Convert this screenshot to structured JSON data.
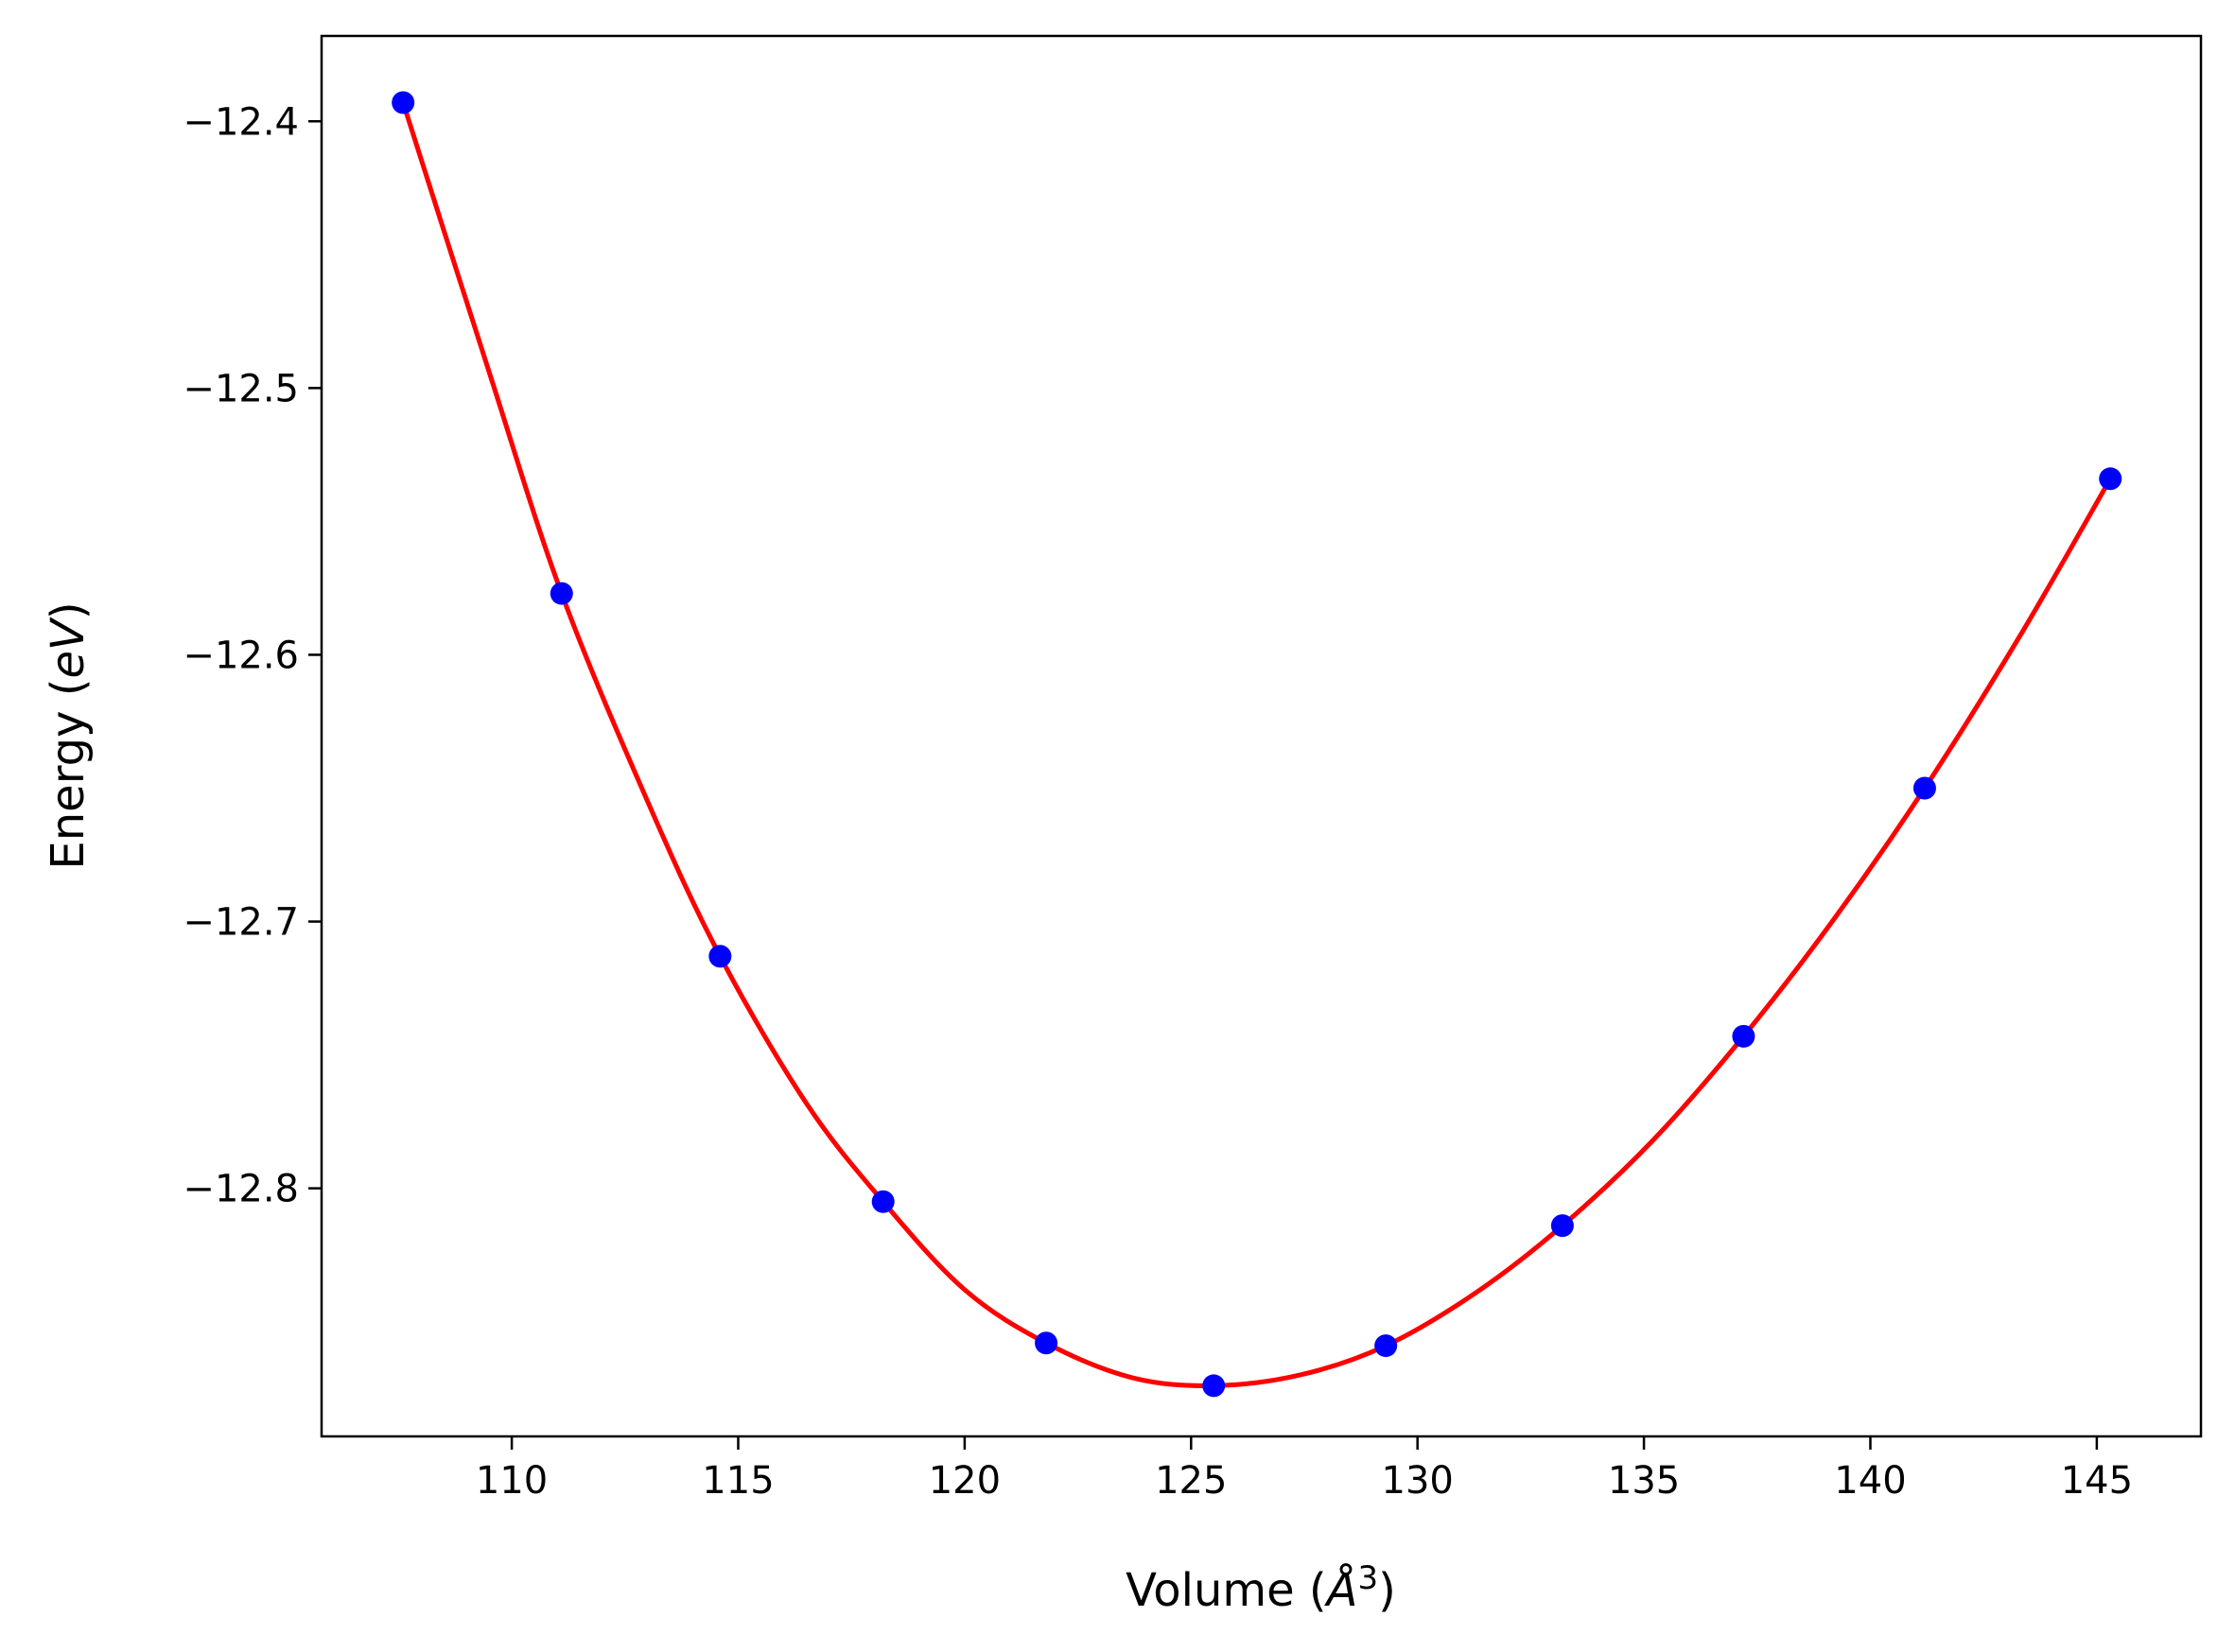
{
  "chart_data": {
    "type": "scatter",
    "xlabel": {
      "prefix": "Volume (",
      "unit": "Å",
      "sup": "3",
      "suffix": ")"
    },
    "ylabel": {
      "prefix": "Energy (",
      "unit": "eV",
      "suffix": ")"
    },
    "xlim": [
      105.8,
      147.3
    ],
    "ylim": [
      -12.893,
      -12.368
    ],
    "x_ticks": [
      110,
      115,
      120,
      125,
      130,
      135,
      140,
      145
    ],
    "y_ticks": [
      -12.4,
      -12.5,
      -12.6,
      -12.7,
      -12.8
    ],
    "x_tick_labels": [
      "110",
      "115",
      "120",
      "125",
      "130",
      "135",
      "140",
      "145"
    ],
    "y_tick_labels": [
      "−12.4",
      "−12.5",
      "−12.6",
      "−12.7",
      "−12.8"
    ],
    "grid": false,
    "series": [
      {
        "kind": "points",
        "color": "#0000ff",
        "x": [
          107.6,
          111.1,
          114.6,
          118.2,
          121.8,
          125.5,
          129.3,
          133.2,
          137.2,
          141.2,
          145.3
        ],
        "y": [
          -12.393,
          -12.577,
          -12.713,
          -12.805,
          -12.858,
          -12.874,
          -12.859,
          -12.814,
          -12.743,
          -12.65,
          -12.534
        ]
      },
      {
        "kind": "fit-curve",
        "color": "#ff0000",
        "x": [
          107.6,
          109.5,
          111.1,
          113.0,
          114.6,
          116.5,
          118.2,
          120.0,
          121.8,
          123.7,
          125.5,
          127.4,
          129.3,
          131.3,
          133.2,
          135.2,
          137.2,
          139.2,
          141.2,
          143.3,
          145.3
        ],
        "y": [
          -12.393,
          -12.494,
          -12.577,
          -12.655,
          -12.713,
          -12.768,
          -12.805,
          -12.838,
          -12.858,
          -12.871,
          -12.874,
          -12.87,
          -12.859,
          -12.839,
          -12.814,
          -12.782,
          -12.743,
          -12.699,
          -12.65,
          -12.593,
          -12.534
        ]
      }
    ]
  }
}
